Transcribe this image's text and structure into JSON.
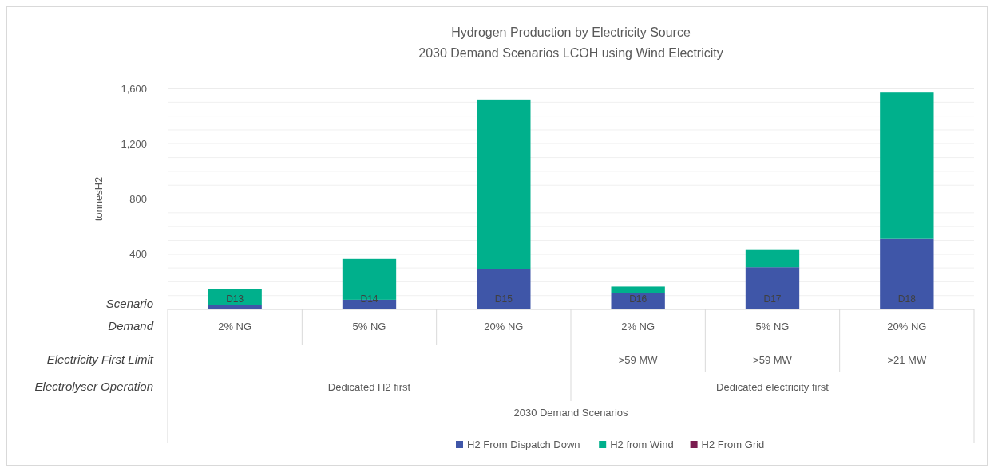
{
  "chart_data": {
    "type": "bar",
    "title": "Hydrogen Production by Electricity Source",
    "subtitle": "2030 Demand Scenarios LCOH using Wind Electricity",
    "ylabel": "tonnesH2",
    "categories": [
      "D13",
      "D14",
      "D15",
      "D16",
      "D17",
      "D18"
    ],
    "stacked": true,
    "series": [
      {
        "name": "H2 From Dispatch Down",
        "color": "#3f56a8",
        "values": [
          30,
          70,
          290,
          120,
          305,
          510
        ]
      },
      {
        "name": "H2 from Wind",
        "color": "#00b08c",
        "values": [
          115,
          295,
          1230,
          45,
          130,
          1060
        ]
      },
      {
        "name": "H2 From Grid",
        "color": "#7b1d50",
        "values": [
          0,
          0,
          0,
          0,
          0,
          0
        ]
      }
    ],
    "ylim": [
      0,
      1600
    ],
    "yticks": [
      {
        "value": 0,
        "label": null
      },
      {
        "value": 100,
        "label": null
      },
      {
        "value": 200,
        "label": null
      },
      {
        "value": 300,
        "label": null
      },
      {
        "value": 400,
        "label": "400"
      },
      {
        "value": 500,
        "label": null
      },
      {
        "value": 600,
        "label": null
      },
      {
        "value": 700,
        "label": null
      },
      {
        "value": 800,
        "label": "800"
      },
      {
        "value": 900,
        "label": null
      },
      {
        "value": 1000,
        "label": null
      },
      {
        "value": 1100,
        "label": null
      },
      {
        "value": 1200,
        "label": "1,200"
      },
      {
        "value": 1300,
        "label": null
      },
      {
        "value": 1400,
        "label": null
      },
      {
        "value": 1500,
        "label": null
      },
      {
        "value": 1600,
        "label": "1,600"
      }
    ],
    "grid": "y",
    "legend": "bottom",
    "annotations": [
      "Scenario",
      "Demand",
      "Electricity First Limit",
      "Electrolyser Operation",
      "Dedicated H2 first",
      "Dedicated electricity first",
      "2030 Demand Scenarios",
      "2% NG",
      "5% NG",
      "20% NG",
      "2% NG",
      "5% NG",
      "20% NG",
      ">59 MW",
      ">59 MW",
      ">21 MW"
    ]
  }
}
